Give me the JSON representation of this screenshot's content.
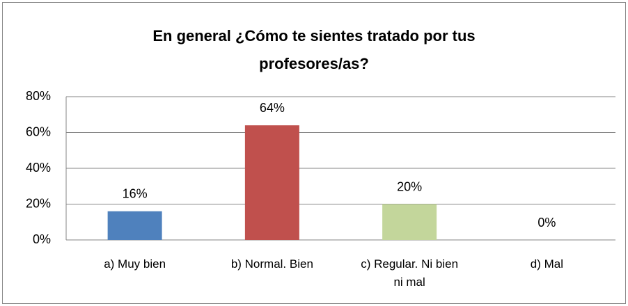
{
  "chart_data": {
    "type": "bar",
    "title": "En general ¿Cómo te sientes tratado por tus profesores/as?",
    "categories": [
      "a) Muy bien",
      "b) Normal. Bien",
      "c) Regular. Ni bien ni mal",
      "d) Mal"
    ],
    "values": [
      16,
      64,
      20,
      0
    ],
    "value_labels": [
      "16%",
      "64%",
      "20%",
      "0%"
    ],
    "colors": [
      "#4f81bd",
      "#c0504d",
      "#c3d69b",
      "#8064a2"
    ],
    "ylim": [
      0,
      80
    ],
    "yticks": [
      {
        "value": 0,
        "label": "0%"
      },
      {
        "value": 20,
        "label": "20%"
      },
      {
        "value": 40,
        "label": "40%"
      },
      {
        "value": 60,
        "label": "60%"
      },
      {
        "value": 80,
        "label": "80%"
      }
    ],
    "grid": true
  }
}
